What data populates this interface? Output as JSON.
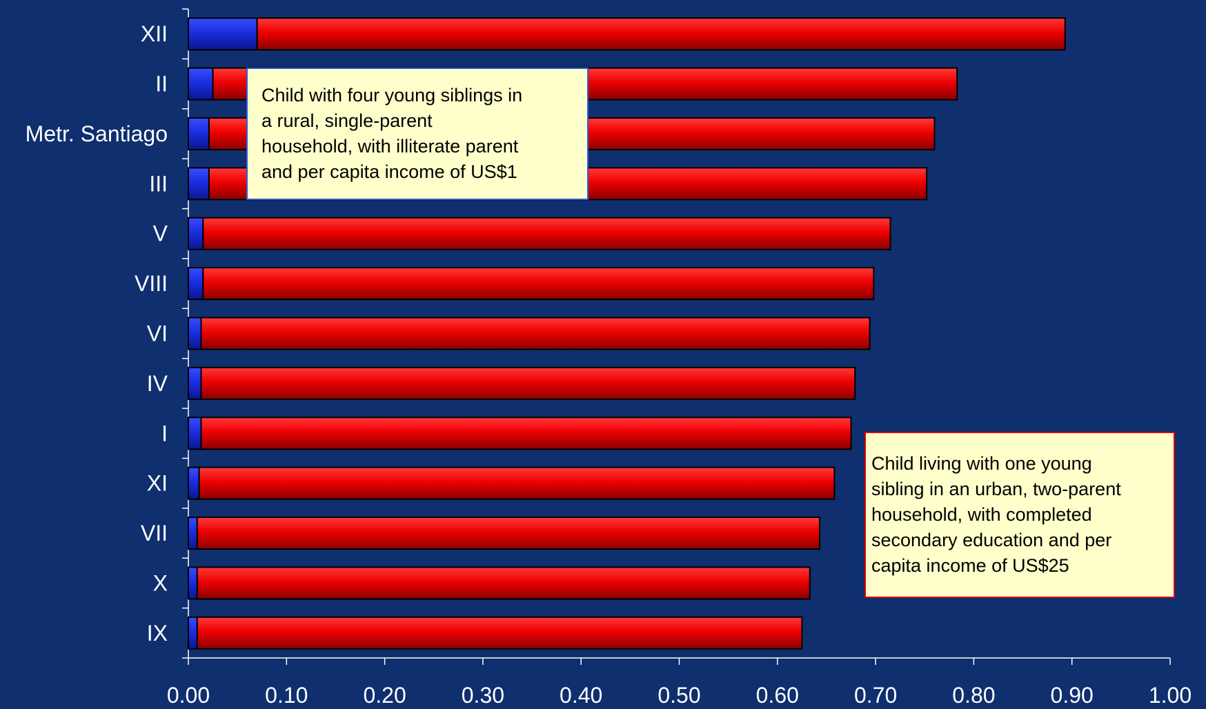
{
  "chart_data": {
    "type": "bar",
    "orientation": "horizontal",
    "stacked": true,
    "title": "",
    "xlabel": "",
    "ylabel": "",
    "xlim": [
      0,
      1.0
    ],
    "x_ticks": [
      "0.00",
      "0.10",
      "0.20",
      "0.30",
      "0.40",
      "0.50",
      "0.60",
      "0.70",
      "0.80",
      "0.90",
      "1.00"
    ],
    "categories": [
      "XII",
      "II",
      "Metr. Santiago",
      "III",
      "V",
      "VIII",
      "VI",
      "IV",
      "I",
      "XI",
      "VII",
      "X",
      "IX"
    ],
    "series": [
      {
        "color": "#1a2fe0",
        "values": [
          0.07,
          0.025,
          0.021,
          0.021,
          0.015,
          0.015,
          0.013,
          0.013,
          0.013,
          0.011,
          0.009,
          0.009,
          0.009
        ]
      },
      {
        "color": "#e30000",
        "values": [
          0.823,
          0.758,
          0.739,
          0.731,
          0.7,
          0.683,
          0.681,
          0.666,
          0.662,
          0.647,
          0.634,
          0.624,
          0.616
        ]
      }
    ],
    "totals": [
      0.893,
      0.783,
      0.76,
      0.752,
      0.715,
      0.698,
      0.694,
      0.679,
      0.675,
      0.658,
      0.643,
      0.633,
      0.625
    ],
    "grid": false,
    "legend": "none",
    "annotations": [
      {
        "id": "blue",
        "lines": [
          "Child with four young siblings in",
          "a rural, single-parent",
          "household, with illiterate parent",
          "and per capita income of US$1"
        ]
      },
      {
        "id": "red",
        "lines": [
          "Child living with one young",
          "sibling in an urban, two-parent",
          "household, with completed",
          "secondary education and per",
          "capita income of US$25"
        ]
      }
    ]
  },
  "colors": {
    "background": "#0f2f6e",
    "axis": "#ffffff",
    "text": "#ffffff",
    "callout_fill": "#ffffcc",
    "callout_blue_border": "#2f5cd8",
    "callout_red_border": "#e00000"
  }
}
